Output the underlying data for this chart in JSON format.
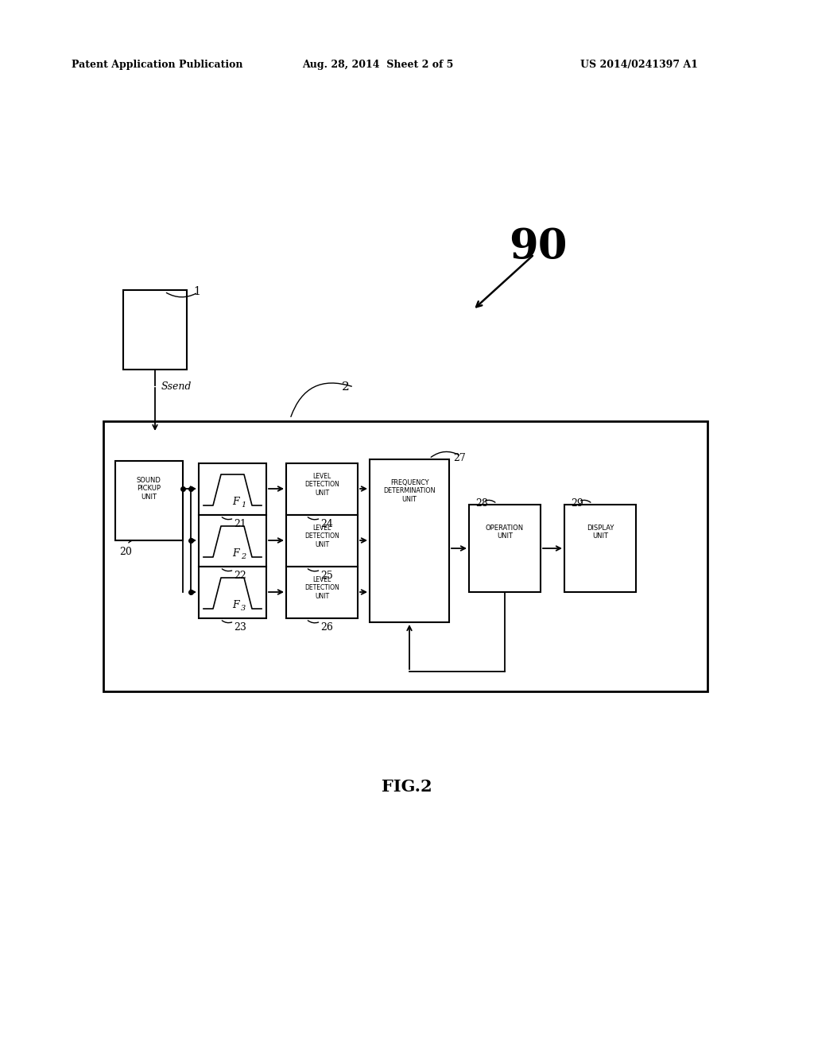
{
  "bg_color": "#ffffff",
  "header_left": "Patent Application Publication",
  "header_mid": "Aug. 28, 2014  Sheet 2 of 5",
  "header_right": "US 2014/0241397 A1",
  "figure_label": "FIG.2",
  "label_90": "90",
  "label_2": "2",
  "label_1": "1",
  "label_ssend": "Ssend",
  "label_20": "20",
  "label_21": "21",
  "label_22": "22",
  "label_23": "23",
  "label_24": "24",
  "label_25": "25",
  "label_26": "26",
  "label_27": "27",
  "label_28": "28",
  "label_29": "29",
  "box_sound_pickup": "SOUND\nPICKUP\nUNIT",
  "box_freq_det": "FREQUENCY\nDETERMINATION\nUNIT",
  "box_operation": "OPERATION\nUNIT",
  "box_display": "DISPLAY\nUNIT",
  "box_level": "LEVEL\nDETECTION\nUNIT",
  "filter_subs": [
    "1",
    "2",
    "3"
  ]
}
